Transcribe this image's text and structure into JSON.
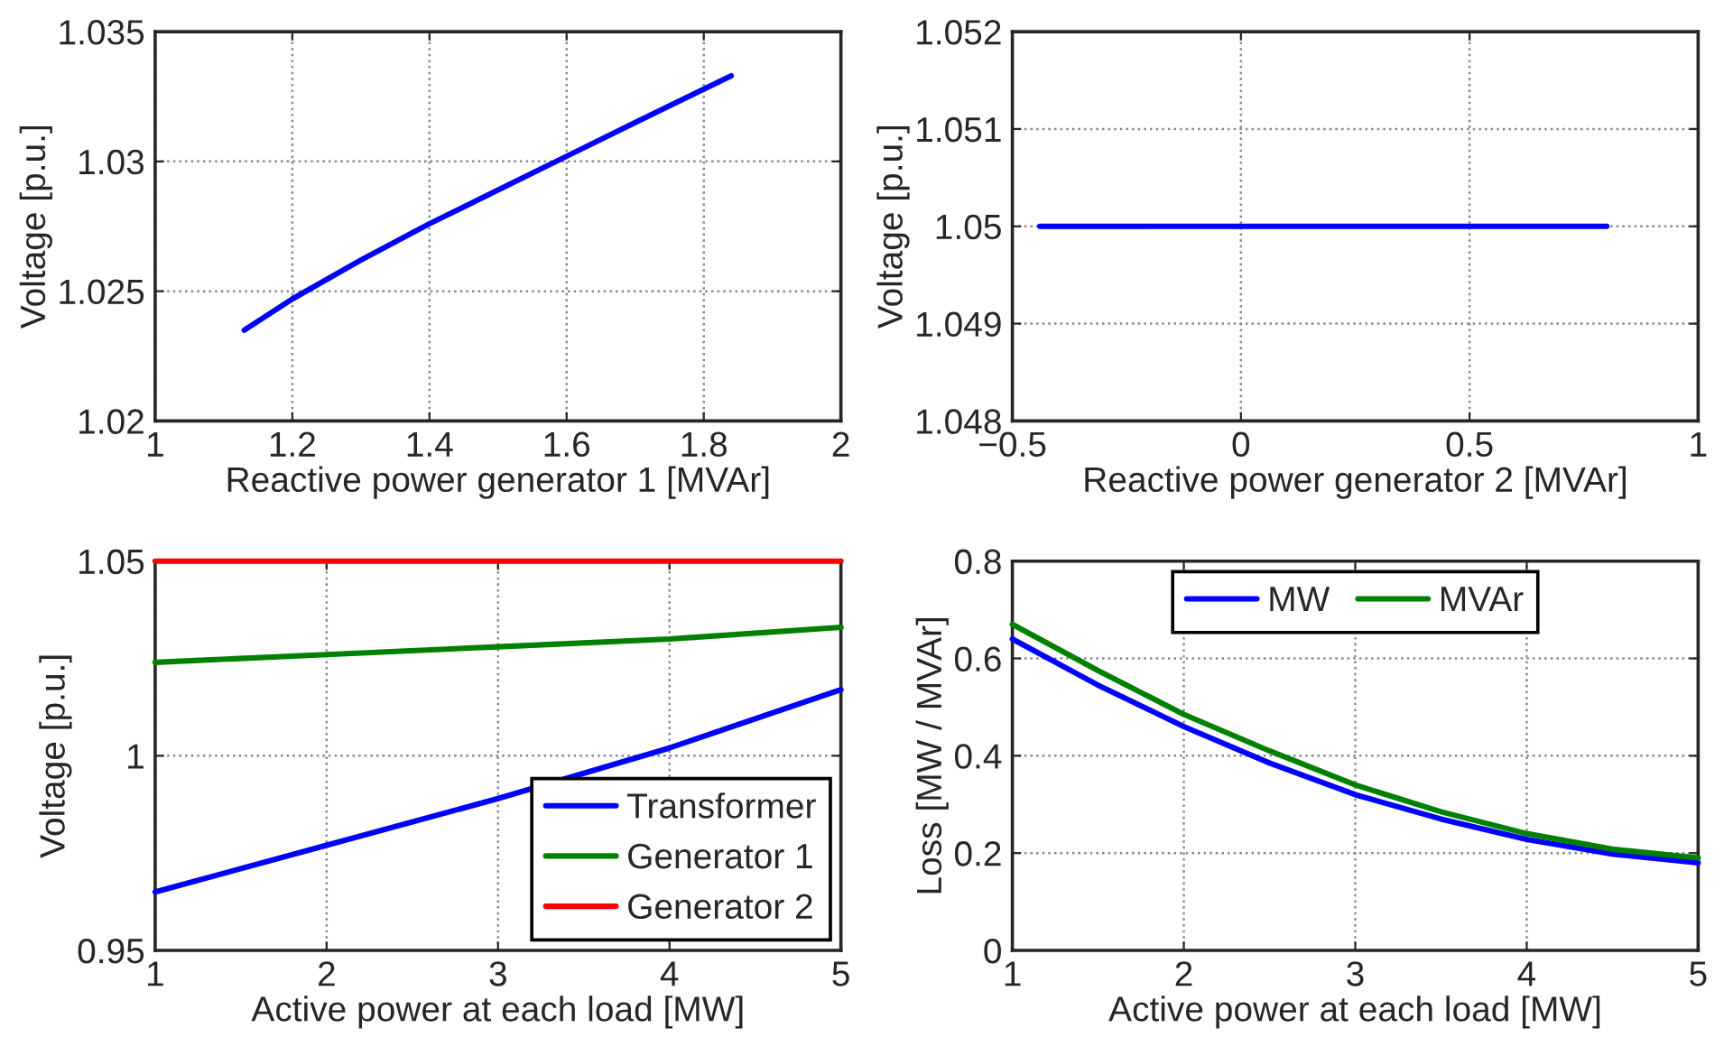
{
  "chart_data": [
    {
      "type": "line",
      "xlabel": "Reactive power generator 1 [MVAr]",
      "ylabel": "Voltage [p.u.]",
      "xlim": [
        1,
        2
      ],
      "xticks": [
        1,
        1.2,
        1.4,
        1.6,
        1.8,
        2
      ],
      "ylim": [
        1.02,
        1.035
      ],
      "yticks": [
        1.02,
        1.025,
        1.03,
        1.035
      ],
      "grid": true,
      "series": [
        {
          "color": "#0000ff",
          "x": [
            1.13,
            1.2,
            1.3,
            1.4,
            1.5,
            1.6,
            1.7,
            1.84
          ],
          "values": [
            1.0235,
            1.0247,
            1.0262,
            1.0276,
            1.0289,
            1.0302,
            1.0315,
            1.0333
          ]
        }
      ]
    },
    {
      "type": "line",
      "xlabel": "Reactive power generator 2 [MVAr]",
      "ylabel": "Voltage [p.u.]",
      "xlim": [
        -0.5,
        1
      ],
      "xticks": [
        {
          "value": -0.5,
          "label": "−0.5"
        },
        0,
        0.5,
        1
      ],
      "ylim": [
        1.048,
        1.052
      ],
      "yticks": [
        1.048,
        1.049,
        1.05,
        1.051,
        1.052
      ],
      "grid": true,
      "series": [
        {
          "color": "#0000ff",
          "x": [
            -0.44,
            0,
            0.3,
            0.8
          ],
          "values": [
            1.05,
            1.05,
            1.05,
            1.05
          ]
        }
      ]
    },
    {
      "type": "line",
      "xlabel": "Active power at each load [MW]",
      "ylabel": "Voltage [p.u.]",
      "xlim": [
        1,
        5
      ],
      "xticks": [
        1,
        2,
        3,
        4,
        5
      ],
      "ylim": [
        0.95,
        1.05
      ],
      "yticks": [
        0.95,
        1,
        1.05
      ],
      "grid": true,
      "legend": "bottom right",
      "series": [
        {
          "name": "Transformer",
          "color": "#0000ff",
          "x": [
            1,
            2,
            3,
            4,
            5
          ],
          "values": [
            0.965,
            0.977,
            0.989,
            1.002,
            1.017
          ]
        },
        {
          "name": "Generator 1",
          "color": "#008000",
          "x": [
            1,
            2,
            3,
            4,
            5
          ],
          "values": [
            1.024,
            1.026,
            1.028,
            1.03,
            1.033
          ]
        },
        {
          "name": "Generator 2",
          "color": "#ff0000",
          "x": [
            1,
            5
          ],
          "values": [
            1.05,
            1.05
          ]
        }
      ]
    },
    {
      "type": "line",
      "xlabel": "Active power at each load [MW]",
      "ylabel": "Loss [MW / MVAr]",
      "xlim": [
        1,
        5
      ],
      "xticks": [
        1,
        2,
        3,
        4,
        5
      ],
      "ylim": [
        0,
        0.8
      ],
      "yticks": [
        0,
        0.2,
        0.4,
        0.6,
        0.8
      ],
      "grid": true,
      "legend": "top",
      "series": [
        {
          "name": "MW",
          "color": "#0000ff",
          "x": [
            1,
            1.5,
            2,
            2.5,
            3,
            3.5,
            4,
            4.5,
            5
          ],
          "values": [
            0.64,
            0.545,
            0.46,
            0.385,
            0.32,
            0.27,
            0.228,
            0.198,
            0.18
          ]
        },
        {
          "name": "MVAr",
          "color": "#008000",
          "x": [
            1,
            1.5,
            2,
            2.5,
            3,
            3.5,
            4,
            4.5,
            5
          ],
          "values": [
            0.67,
            0.575,
            0.485,
            0.41,
            0.34,
            0.285,
            0.24,
            0.208,
            0.19
          ]
        }
      ]
    }
  ]
}
